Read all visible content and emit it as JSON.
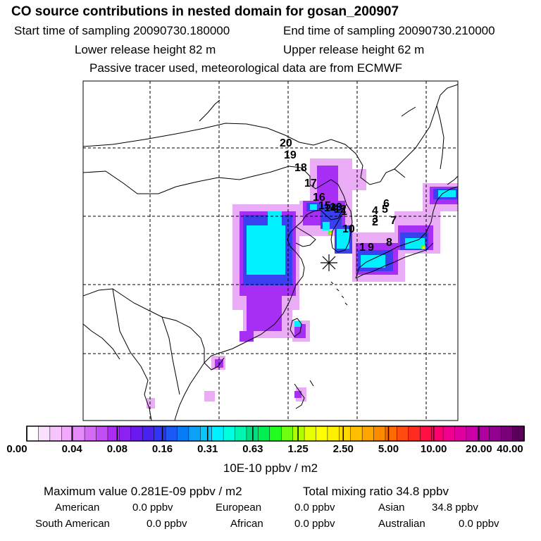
{
  "title": "CO  source contributions in nested domain for gosan_200907",
  "header": {
    "start_label": "Start time of sampling 20090730.180000",
    "end_label": "End time of sampling 20090730.210000",
    "lower_label": "Lower release height   82 m",
    "upper_label": "Upper release height   62 m",
    "note": "Passive tracer used, meteorological data are from ECMWF"
  },
  "map": {
    "trajectory_labels": [
      "20",
      "19",
      "18",
      "17",
      "16",
      "15",
      "14",
      "13",
      "12",
      "1",
      "10",
      "4",
      "5",
      "6",
      "3",
      "2",
      "7",
      "1",
      "9",
      "8"
    ],
    "colors": {
      "background": "#ffffff",
      "coast": "#000000",
      "plume_light": "#e9a8f5",
      "plume_mid": "#a72ef5",
      "plume_blue": "#3a40f0",
      "plume_cyan": "#00f0ff",
      "plume_green": "#40ff40",
      "plume_yellow": "#f5e000"
    }
  },
  "colorbar": {
    "labels": [
      "0.00",
      "0.04",
      "0.08",
      "0.16",
      "0.31",
      "0.63",
      "1.25",
      "2.50",
      "5.00",
      "10.00",
      "20.00",
      "40.00"
    ],
    "units": "10E-10 ppbv / m2",
    "colors": [
      "#ffffff",
      "#fbe0fe",
      "#f7c4fd",
      "#f2a8fb",
      "#e58af8",
      "#d46bf6",
      "#c24ef5",
      "#ad2cf3",
      "#8c22f0",
      "#6a1aef",
      "#4a22f0",
      "#2f37f2",
      "#1b58f4",
      "#0a7bf6",
      "#0aa1f7",
      "#09c7fa",
      "#00f0ff",
      "#00ffe0",
      "#00f5b0",
      "#00e080",
      "#00f050",
      "#20ff20",
      "#70ff10",
      "#b0ff00",
      "#e8ff00",
      "#ffff00",
      "#fff000",
      "#ffd800",
      "#ffbf00",
      "#ffa500",
      "#ff8a00",
      "#ff6a00",
      "#ff4a10",
      "#ff2a20",
      "#ff1040",
      "#ff0070",
      "#f00090",
      "#e000a0",
      "#cc00a8",
      "#b000a0",
      "#940090",
      "#780078",
      "#5a005a"
    ]
  },
  "stats": {
    "max_label": "Maximum value  0.281E-09 ppbv / m2",
    "total_label": "Total mixing ratio      34.8 ppbv",
    "american_label": "American",
    "american_value": "0.0 ppbv",
    "european_label": "European",
    "european_value": "0.0 ppbv",
    "asian_label": "Asian",
    "asian_value": "34.8 ppbv",
    "south_american_label": "South American",
    "south_american_value": "0.0 ppbv",
    "african_label": "African",
    "african_value": "0.0 ppbv",
    "australian_label": "Australian",
    "australian_value": "0.0 ppbv"
  }
}
